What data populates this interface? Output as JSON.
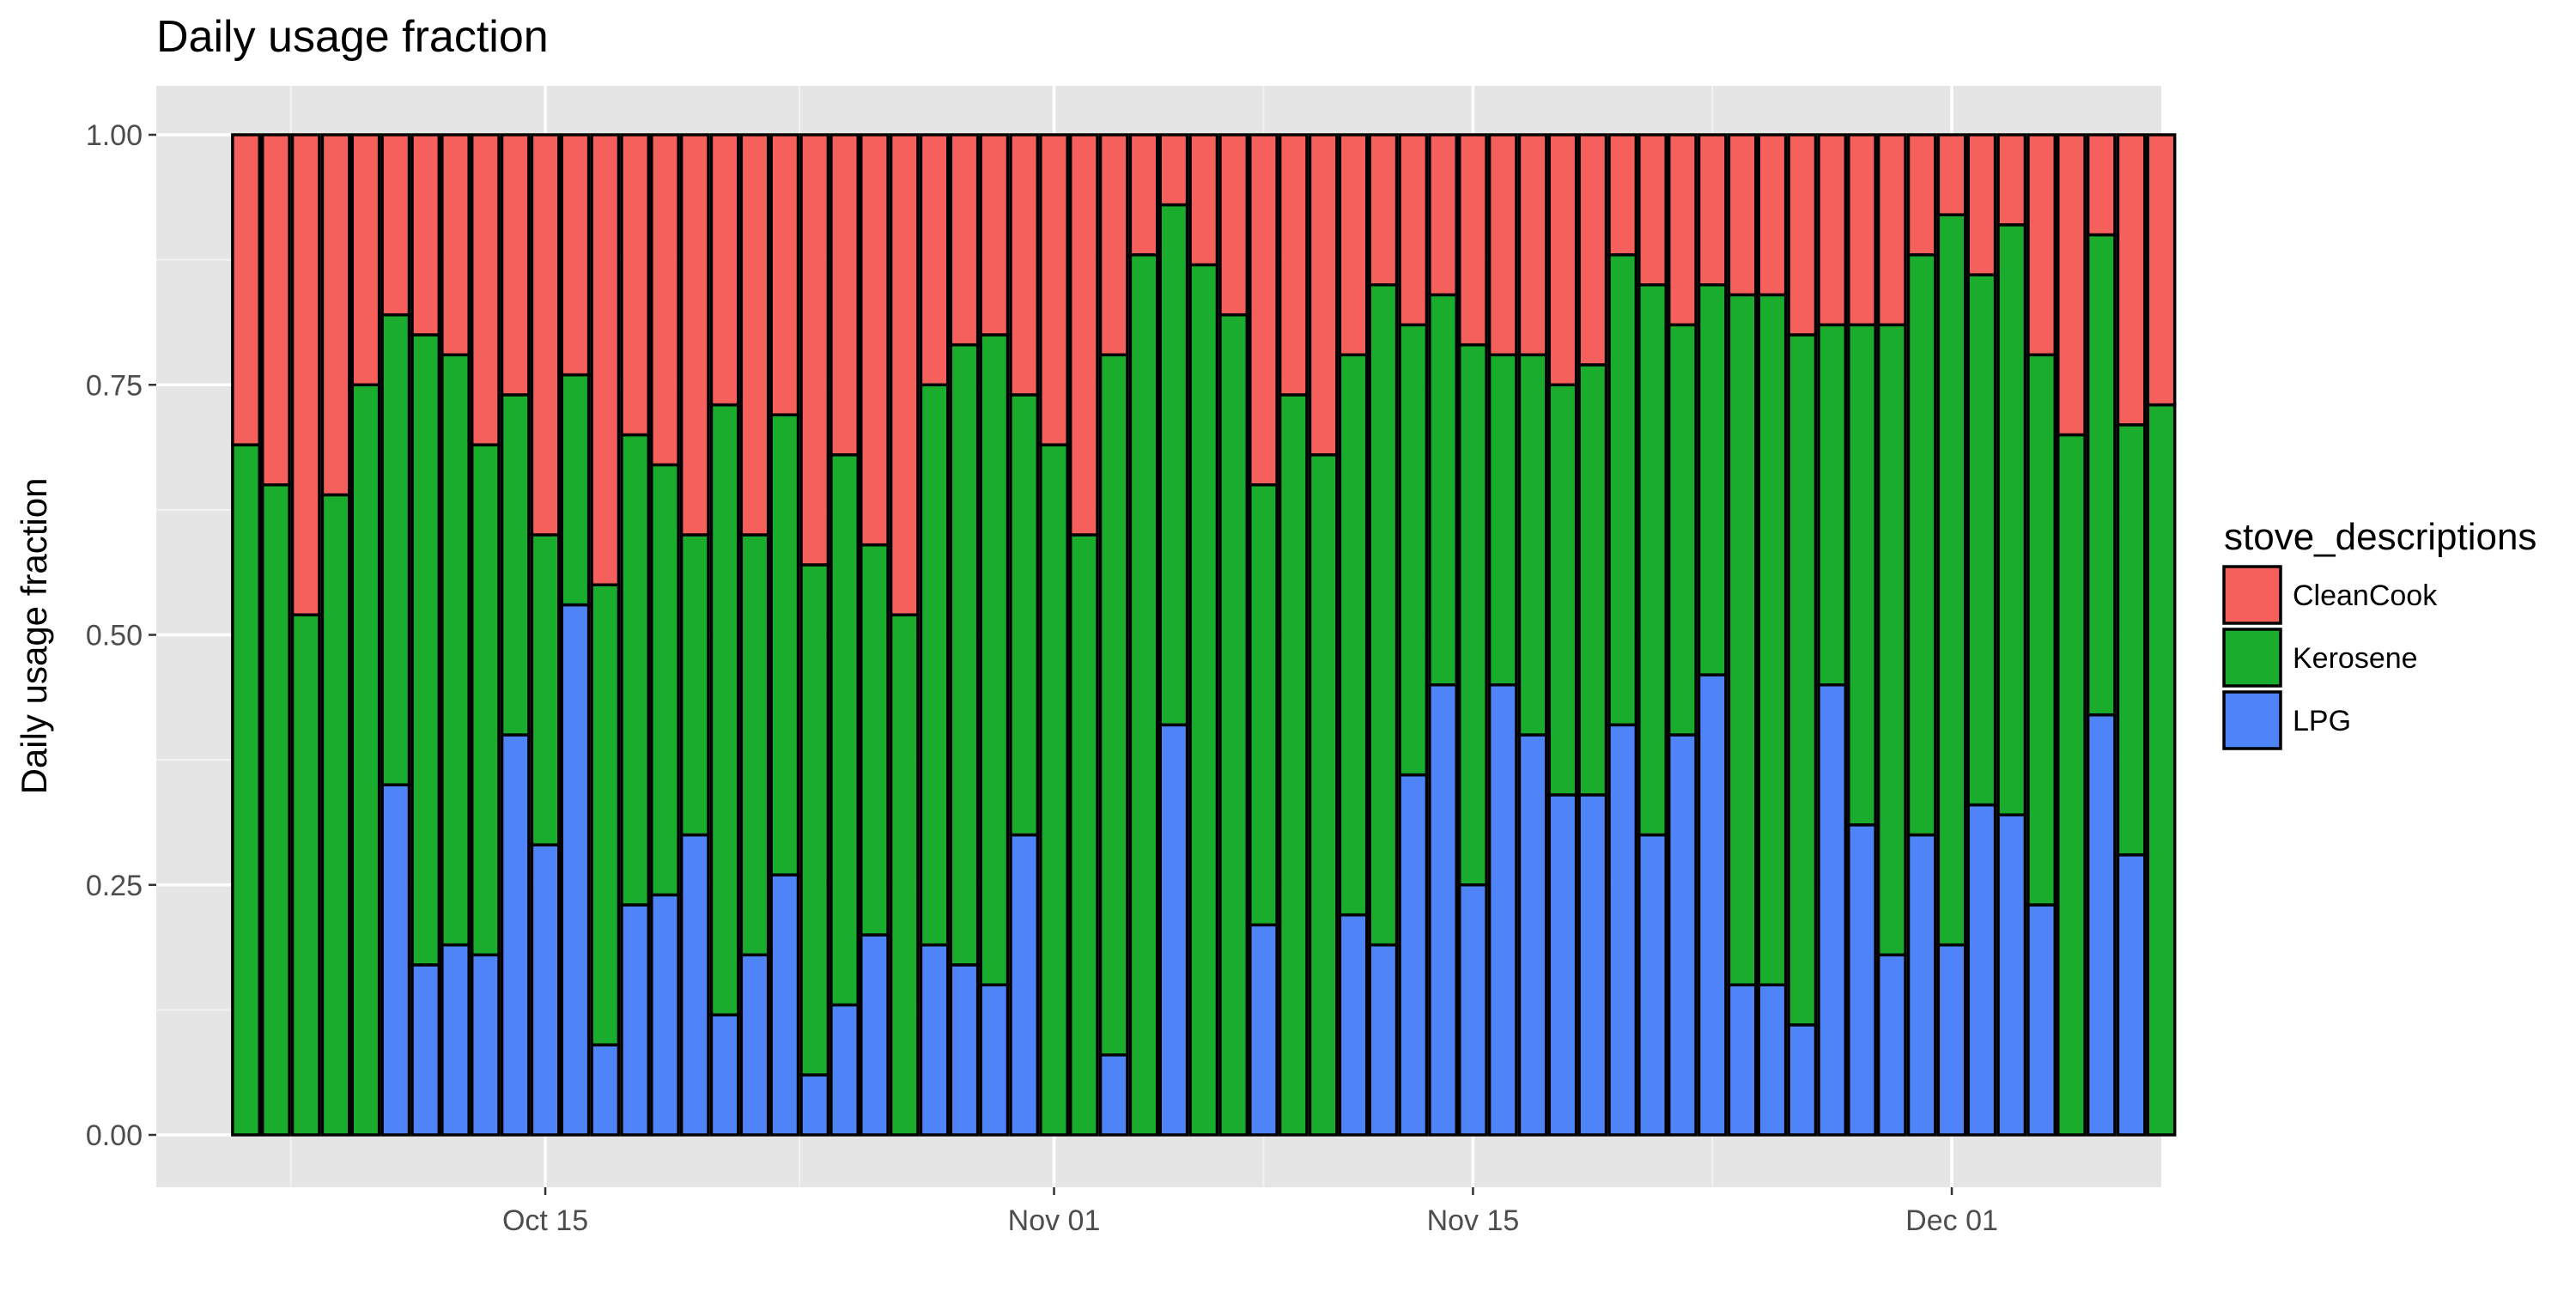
{
  "chart_data": {
    "type": "bar",
    "stacked": true,
    "title": "Daily usage fraction",
    "xlabel": "",
    "ylabel": "Daily usage fraction",
    "ylim": [
      0,
      1
    ],
    "y_ticks": [
      "0.00",
      "0.25",
      "0.50",
      "0.75",
      "1.00"
    ],
    "x_range": [
      "2016-10-02",
      "2016-12-08"
    ],
    "x_ticks": [
      {
        "date": "2016-10-15",
        "label": "Oct 15"
      },
      {
        "date": "2016-11-01",
        "label": "Nov 01"
      },
      {
        "date": "2016-11-15",
        "label": "Nov 15"
      },
      {
        "date": "2016-12-01",
        "label": "Dec 01"
      }
    ],
    "legend_title": "stove_descriptions",
    "legend_placement": "right",
    "grid": true,
    "x": [
      "2016-10-05",
      "2016-10-06",
      "2016-10-07",
      "2016-10-08",
      "2016-10-09",
      "2016-10-10",
      "2016-10-11",
      "2016-10-12",
      "2016-10-13",
      "2016-10-14",
      "2016-10-15",
      "2016-10-16",
      "2016-10-17",
      "2016-10-18",
      "2016-10-19",
      "2016-10-20",
      "2016-10-21",
      "2016-10-22",
      "2016-10-23",
      "2016-10-24",
      "2016-10-25",
      "2016-10-26",
      "2016-10-27",
      "2016-10-28",
      "2016-10-29",
      "2016-10-30",
      "2016-10-31",
      "2016-11-01",
      "2016-11-02",
      "2016-11-03",
      "2016-11-04",
      "2016-11-05",
      "2016-11-06",
      "2016-11-07",
      "2016-11-08",
      "2016-11-09",
      "2016-11-10",
      "2016-11-11",
      "2016-11-12",
      "2016-11-13",
      "2016-11-14",
      "2016-11-15",
      "2016-11-16",
      "2016-11-17",
      "2016-11-18",
      "2016-11-19",
      "2016-11-20",
      "2016-11-21",
      "2016-11-22",
      "2016-11-23",
      "2016-11-24",
      "2016-11-25",
      "2016-11-26",
      "2016-11-27",
      "2016-11-28",
      "2016-11-29",
      "2016-11-30",
      "2016-12-01",
      "2016-12-02",
      "2016-12-03",
      "2016-12-04",
      "2016-12-05",
      "2016-12-06",
      "2016-12-07",
      "2016-12-08"
    ],
    "series": [
      {
        "name": "LPG",
        "color": "#4f84f9",
        "values": [
          0,
          0,
          0,
          0,
          0,
          0.35,
          0.17,
          0.19,
          0.18,
          0.4,
          0.29,
          0.53,
          0.09,
          0.23,
          0.24,
          0.3,
          0.12,
          0.18,
          0.26,
          0.06,
          0.13,
          0.2,
          0,
          0.19,
          0.17,
          0.15,
          0.3,
          0,
          0,
          0.08,
          0,
          0.41,
          0,
          0,
          0.21,
          0,
          0,
          0.22,
          0.19,
          0.36,
          0.45,
          0.25,
          0.45,
          0.4,
          0.34,
          0.34,
          0.41,
          0.3,
          0.4,
          0.46,
          0.15,
          0.15,
          0.11,
          0.45,
          0.31,
          0.18,
          0.3,
          0.19,
          0.33,
          0.32,
          0.23,
          0,
          0.42,
          0.28,
          0
        ]
      },
      {
        "name": "Kerosene",
        "color": "#1aad2d",
        "values": [
          0.69,
          0.65,
          0.52,
          0.64,
          0.75,
          0.47,
          0.63,
          0.59,
          0.51,
          0.34,
          0.31,
          0.23,
          0.46,
          0.47,
          0.43,
          0.3,
          0.61,
          0.42,
          0.46,
          0.51,
          0.55,
          0.39,
          0.52,
          0.56,
          0.62,
          0.65,
          0.44,
          0.69,
          0.6,
          0.7,
          0.88,
          0.52,
          0.87,
          0.82,
          0.44,
          0.74,
          0.68,
          0.56,
          0.66,
          0.45,
          0.39,
          0.54,
          0.33,
          0.38,
          0.41,
          0.43,
          0.47,
          0.55,
          0.41,
          0.39,
          0.69,
          0.69,
          0.69,
          0.36,
          0.5,
          0.63,
          0.58,
          0.73,
          0.53,
          0.59,
          0.55,
          0.7,
          0.48,
          0.43,
          0.73
        ]
      },
      {
        "name": "CleanCook",
        "color": "#f5605c",
        "values": [
          0.31,
          0.35,
          0.48,
          0.36,
          0.25,
          0.18,
          0.2,
          0.22,
          0.31,
          0.26,
          0.4,
          0.24,
          0.45,
          0.3,
          0.33,
          0.4,
          0.27,
          0.4,
          0.28,
          0.43,
          0.32,
          0.41,
          0.48,
          0.25,
          0.21,
          0.2,
          0.26,
          0.31,
          0.4,
          0.22,
          0.12,
          0.07,
          0.13,
          0.18,
          0.35,
          0.26,
          0.32,
          0.22,
          0.15,
          0.19,
          0.16,
          0.21,
          0.22,
          0.22,
          0.25,
          0.23,
          0.12,
          0.15,
          0.19,
          0.15,
          0.16,
          0.16,
          0.2,
          0.19,
          0.19,
          0.19,
          0.12,
          0.08,
          0.14,
          0.09,
          0.22,
          0.3,
          0.1,
          0.29,
          0.27
        ]
      }
    ],
    "legend_entries": [
      {
        "name": "CleanCook",
        "color": "#f5605c"
      },
      {
        "name": "Kerosene",
        "color": "#1aad2d"
      },
      {
        "name": "LPG",
        "color": "#4f84f9"
      }
    ]
  }
}
